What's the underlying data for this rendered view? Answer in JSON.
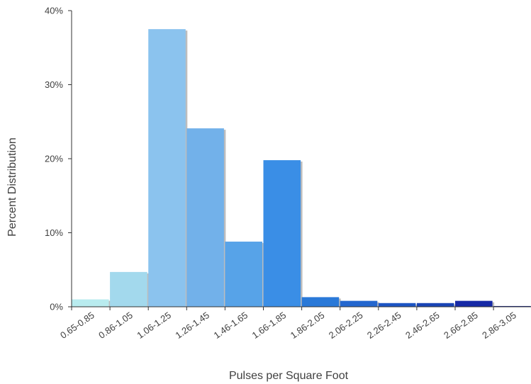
{
  "chart_data": {
    "type": "bar",
    "title": "",
    "xlabel": "Pulses per Square Foot",
    "ylabel": "Percent Distribution",
    "ylim": [
      0,
      40
    ],
    "yticks": [
      0,
      10,
      20,
      30,
      40
    ],
    "ytick_labels": [
      "0%",
      "10%",
      "20%",
      "30%",
      "40%"
    ],
    "grid": false,
    "legend": "none",
    "categories": [
      "0.65-0.85",
      "0.86-1.05",
      "1.06-1.25",
      "1.26-1.45",
      "1.46-1.65",
      "1.66-1.85",
      "1.86-2.05",
      "2.06-2.25",
      "2.26-2.45",
      "2.46-2.65",
      "2.66-2.85",
      "2.86-3.05"
    ],
    "values": [
      1.0,
      4.7,
      37.5,
      24.1,
      8.8,
      19.8,
      1.3,
      0.8,
      0.5,
      0.5,
      0.8,
      0.1
    ],
    "colors": [
      "#b9ecef",
      "#a3d9ed",
      "#8bc3ee",
      "#72b1ea",
      "#57a3e8",
      "#3a8ee6",
      "#2a79d8",
      "#2467cf",
      "#1d55c3",
      "#1a45b5",
      "#1629a6",
      "#0f1d88"
    ]
  }
}
